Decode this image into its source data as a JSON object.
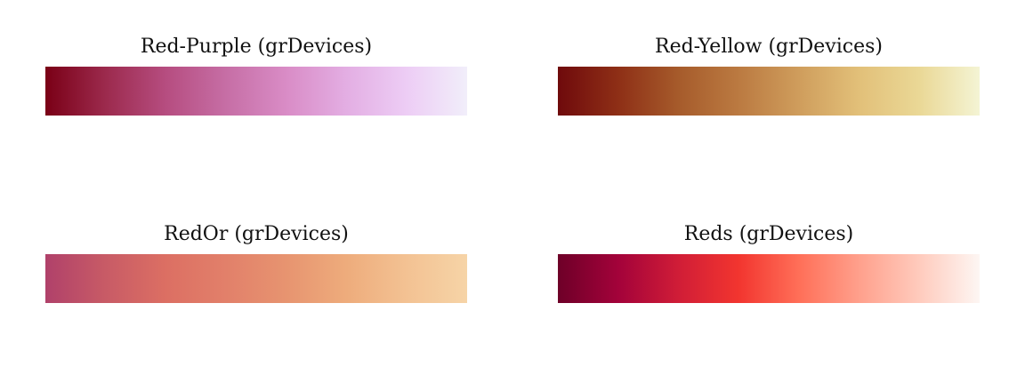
{
  "palettes": [
    {
      "title": "Red-Purple (grDevices)",
      "colors": [
        "#7a0016",
        "#9c2a4d",
        "#b64d80",
        "#c66ea5",
        "#d98cc6",
        "#e3aee3",
        "#edcdf5",
        "#f1eefa"
      ]
    },
    {
      "title": "Red-Yellow (grDevices)",
      "colors": [
        "#6f0a0c",
        "#8e2f16",
        "#a65b2b",
        "#bb7a41",
        "#cf9d5c",
        "#e2c079",
        "#ead896",
        "#f4f4d4"
      ]
    },
    {
      "title": "RedOr (grDevices)",
      "colors": [
        "#b0416a",
        "#c85b66",
        "#dc6f63",
        "#e2806a",
        "#e79470",
        "#eeac7c",
        "#f3c293",
        "#f6d4a7"
      ]
    },
    {
      "title": "Reds (grDevices)",
      "colors": [
        "#6e0028",
        "#a3023a",
        "#d01d37",
        "#f2352f",
        "#ff6f58",
        "#ffa08c",
        "#ffcbbd",
        "#fdf6f3"
      ]
    }
  ]
}
